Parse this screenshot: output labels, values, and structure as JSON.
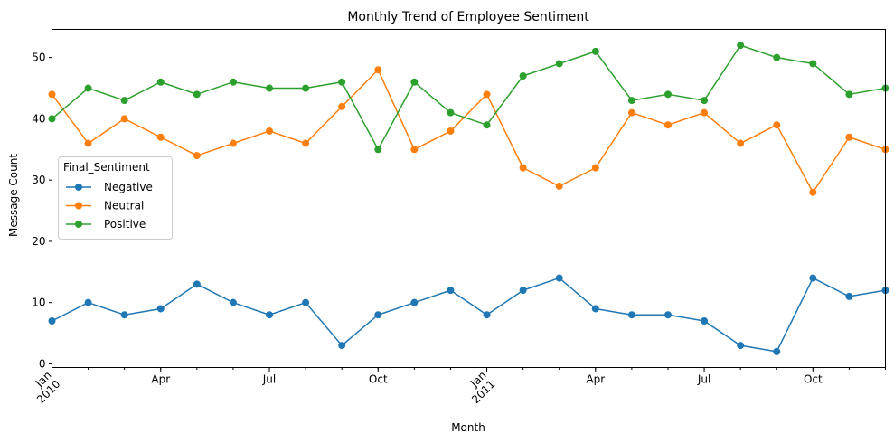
{
  "chart_data": {
    "type": "line",
    "title": "Monthly Trend of Employee Sentiment",
    "xlabel": "Month",
    "ylabel": "Message Count",
    "ylim": [
      -0.6,
      54.6
    ],
    "yticks": [
      0,
      10,
      20,
      30,
      40,
      50
    ],
    "x": [
      "2010-01",
      "2010-02",
      "2010-03",
      "2010-04",
      "2010-05",
      "2010-06",
      "2010-07",
      "2010-08",
      "2010-09",
      "2010-10",
      "2010-11",
      "2010-12",
      "2011-01",
      "2011-02",
      "2011-03",
      "2011-04",
      "2011-05",
      "2011-06",
      "2011-07",
      "2011-08",
      "2011-09",
      "2011-10",
      "2011-11",
      "2011-12"
    ],
    "xticks": [
      {
        "x": "2010-01",
        "label": "Jan",
        "sublabel": "2010"
      },
      {
        "x": "2010-04",
        "label": "Apr",
        "sublabel": ""
      },
      {
        "x": "2010-07",
        "label": "Jul",
        "sublabel": ""
      },
      {
        "x": "2010-10",
        "label": "Oct",
        "sublabel": ""
      },
      {
        "x": "2011-01",
        "label": "Jan",
        "sublabel": "2011"
      },
      {
        "x": "2011-04",
        "label": "Apr",
        "sublabel": ""
      },
      {
        "x": "2011-07",
        "label": "Jul",
        "sublabel": ""
      },
      {
        "x": "2011-10",
        "label": "Oct",
        "sublabel": ""
      }
    ],
    "legend": {
      "title": "Final_Sentiment",
      "placement": "center-left"
    },
    "grid": false,
    "series": [
      {
        "name": "Negative",
        "color": "#1f77b4",
        "values": [
          7,
          10,
          8,
          9,
          13,
          10,
          8,
          10,
          3,
          8,
          10,
          12,
          8,
          12,
          14,
          9,
          8,
          8,
          7,
          3,
          2,
          14,
          11,
          12
        ]
      },
      {
        "name": "Neutral",
        "color": "#ff7f0e",
        "values": [
          44,
          36,
          40,
          37,
          34,
          36,
          38,
          36,
          42,
          48,
          35,
          38,
          44,
          32,
          29,
          32,
          41,
          39,
          41,
          36,
          39,
          28,
          37,
          35
        ]
      },
      {
        "name": "Positive",
        "color": "#2ca02c",
        "values": [
          40,
          45,
          43,
          46,
          44,
          46,
          45,
          45,
          46,
          35,
          46,
          41,
          39,
          47,
          49,
          51,
          43,
          44,
          43,
          52,
          50,
          49,
          44,
          45
        ]
      }
    ]
  }
}
